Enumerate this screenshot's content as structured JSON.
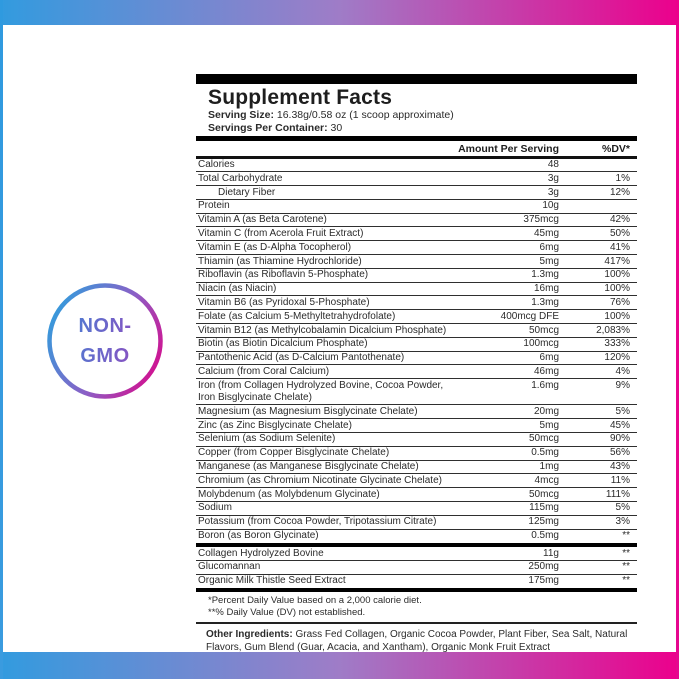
{
  "colors": {
    "frame_gradient_start": "#329BDF",
    "frame_gradient_mid": "#9F7CC7",
    "frame_gradient_end": "#EC008C",
    "badge_text_gradient_start": "#3F86D6",
    "badge_text_gradient_end": "#9C44BC",
    "label_ink": "#1e1e1e"
  },
  "badge": {
    "line1": "NON-",
    "line2": "GMO"
  },
  "label": {
    "title": "Supplement Facts",
    "serving_size_label": "Serving Size:",
    "serving_size_value": " 16.38g/0.58 oz (1 scoop approximate)",
    "servings_label": "Servings Per Container:",
    "servings_value": " 30",
    "header": {
      "amount": "Amount Per Serving",
      "dv": "%DV*"
    },
    "rows": [
      {
        "name": "Calories",
        "amount": "48",
        "dv": ""
      },
      {
        "name": "Total Carbohydrate",
        "amount": "3g",
        "dv": "1%"
      },
      {
        "name": "Dietary Fiber",
        "amount": "3g",
        "dv": "12%",
        "indent": true
      },
      {
        "name": "Protein",
        "amount": "10g",
        "dv": ""
      },
      {
        "name": "Vitamin A (as Beta Carotene)",
        "amount": "375mcg",
        "dv": "42%"
      },
      {
        "name": "Vitamin C (from Acerola Fruit Extract)",
        "amount": "45mg",
        "dv": "50%"
      },
      {
        "name": "Vitamin E (as D-Alpha Tocopherol)",
        "amount": "6mg",
        "dv": "41%"
      },
      {
        "name": "Thiamin (as Thiamine Hydrochloride)",
        "amount": "5mg",
        "dv": "417%"
      },
      {
        "name": "Riboflavin (as Riboflavin 5-Phosphate)",
        "amount": "1.3mg",
        "dv": "100%"
      },
      {
        "name": "Niacin (as Niacin)",
        "amount": "16mg",
        "dv": "100%"
      },
      {
        "name": "Vitamin B6 (as Pyridoxal 5-Phosphate)",
        "amount": "1.3mg",
        "dv": "76%"
      },
      {
        "name": "Folate (as Calcium 5-Methyltetrahydrofolate)",
        "amount": "400mcg DFE",
        "dv": "100%"
      },
      {
        "name": "Vitamin B12 (as Methylcobalamin Dicalcium Phosphate)",
        "amount": "50mcg",
        "dv": "2,083%"
      },
      {
        "name": "Biotin (as Biotin Dicalcium Phosphate)",
        "amount": "100mcg",
        "dv": "333%"
      },
      {
        "name": "Pantothenic Acid (as D-Calcium Pantothenate)",
        "amount": "6mg",
        "dv": "120%"
      },
      {
        "name": "Calcium (from Coral Calcium)",
        "amount": "46mg",
        "dv": "4%"
      },
      {
        "name": "Iron (from Collagen Hydrolyzed Bovine, Cocoa Powder,",
        "name2": "Iron Bisglycinate Chelate)",
        "amount": "1.6mg",
        "dv": "9%"
      },
      {
        "name": "Magnesium (as Magnesium Bisglycinate Chelate)",
        "amount": "20mg",
        "dv": "5%"
      },
      {
        "name": "Zinc (as Zinc Bisglycinate Chelate)",
        "amount": "5mg",
        "dv": "45%"
      },
      {
        "name": "Selenium (as Sodium Selenite)",
        "amount": "50mcg",
        "dv": "90%"
      },
      {
        "name": "Copper (from Copper Bisglycinate Chelate)",
        "amount": "0.5mg",
        "dv": "56%"
      },
      {
        "name": "Manganese (as Manganese Bisglycinate Chelate)",
        "amount": "1mg",
        "dv": "43%"
      },
      {
        "name": "Chromium (as Chromium Nicotinate Glycinate Chelate)",
        "amount": "4mcg",
        "dv": "11%"
      },
      {
        "name": "Molybdenum (as Molybdenum Glycinate)",
        "amount": "50mcg",
        "dv": "111%"
      },
      {
        "name": "Sodium",
        "amount": "115mg",
        "dv": "5%"
      },
      {
        "name": "Potassium (from Cocoa Powder, Tripotassium Citrate)",
        "amount": "125mg",
        "dv": "3%"
      },
      {
        "name": "Boron (as Boron Glycinate)",
        "amount": "0.5mg",
        "dv": "**"
      }
    ],
    "extra_rows": [
      {
        "name": "Collagen Hydrolyzed Bovine",
        "amount": "11g",
        "dv": "**"
      },
      {
        "name": "Glucomannan",
        "amount": "250mg",
        "dv": "**"
      },
      {
        "name": "Organic Milk Thistle Seed Extract",
        "amount": "175mg",
        "dv": "**"
      }
    ],
    "footnotes": [
      "*Percent Daily Value based on a 2,000 calorie diet.",
      "**% Daily Value (DV) not established."
    ],
    "other_ingredients": {
      "label": "Other Ingredients:",
      "text": " Grass Fed Collagen, Organic Cocoa Powder, Plant Fiber, Sea Salt, Natural Flavors, Gum Blend (Guar, Acacia, and Xantham), Organic Monk Fruit Extract"
    }
  }
}
